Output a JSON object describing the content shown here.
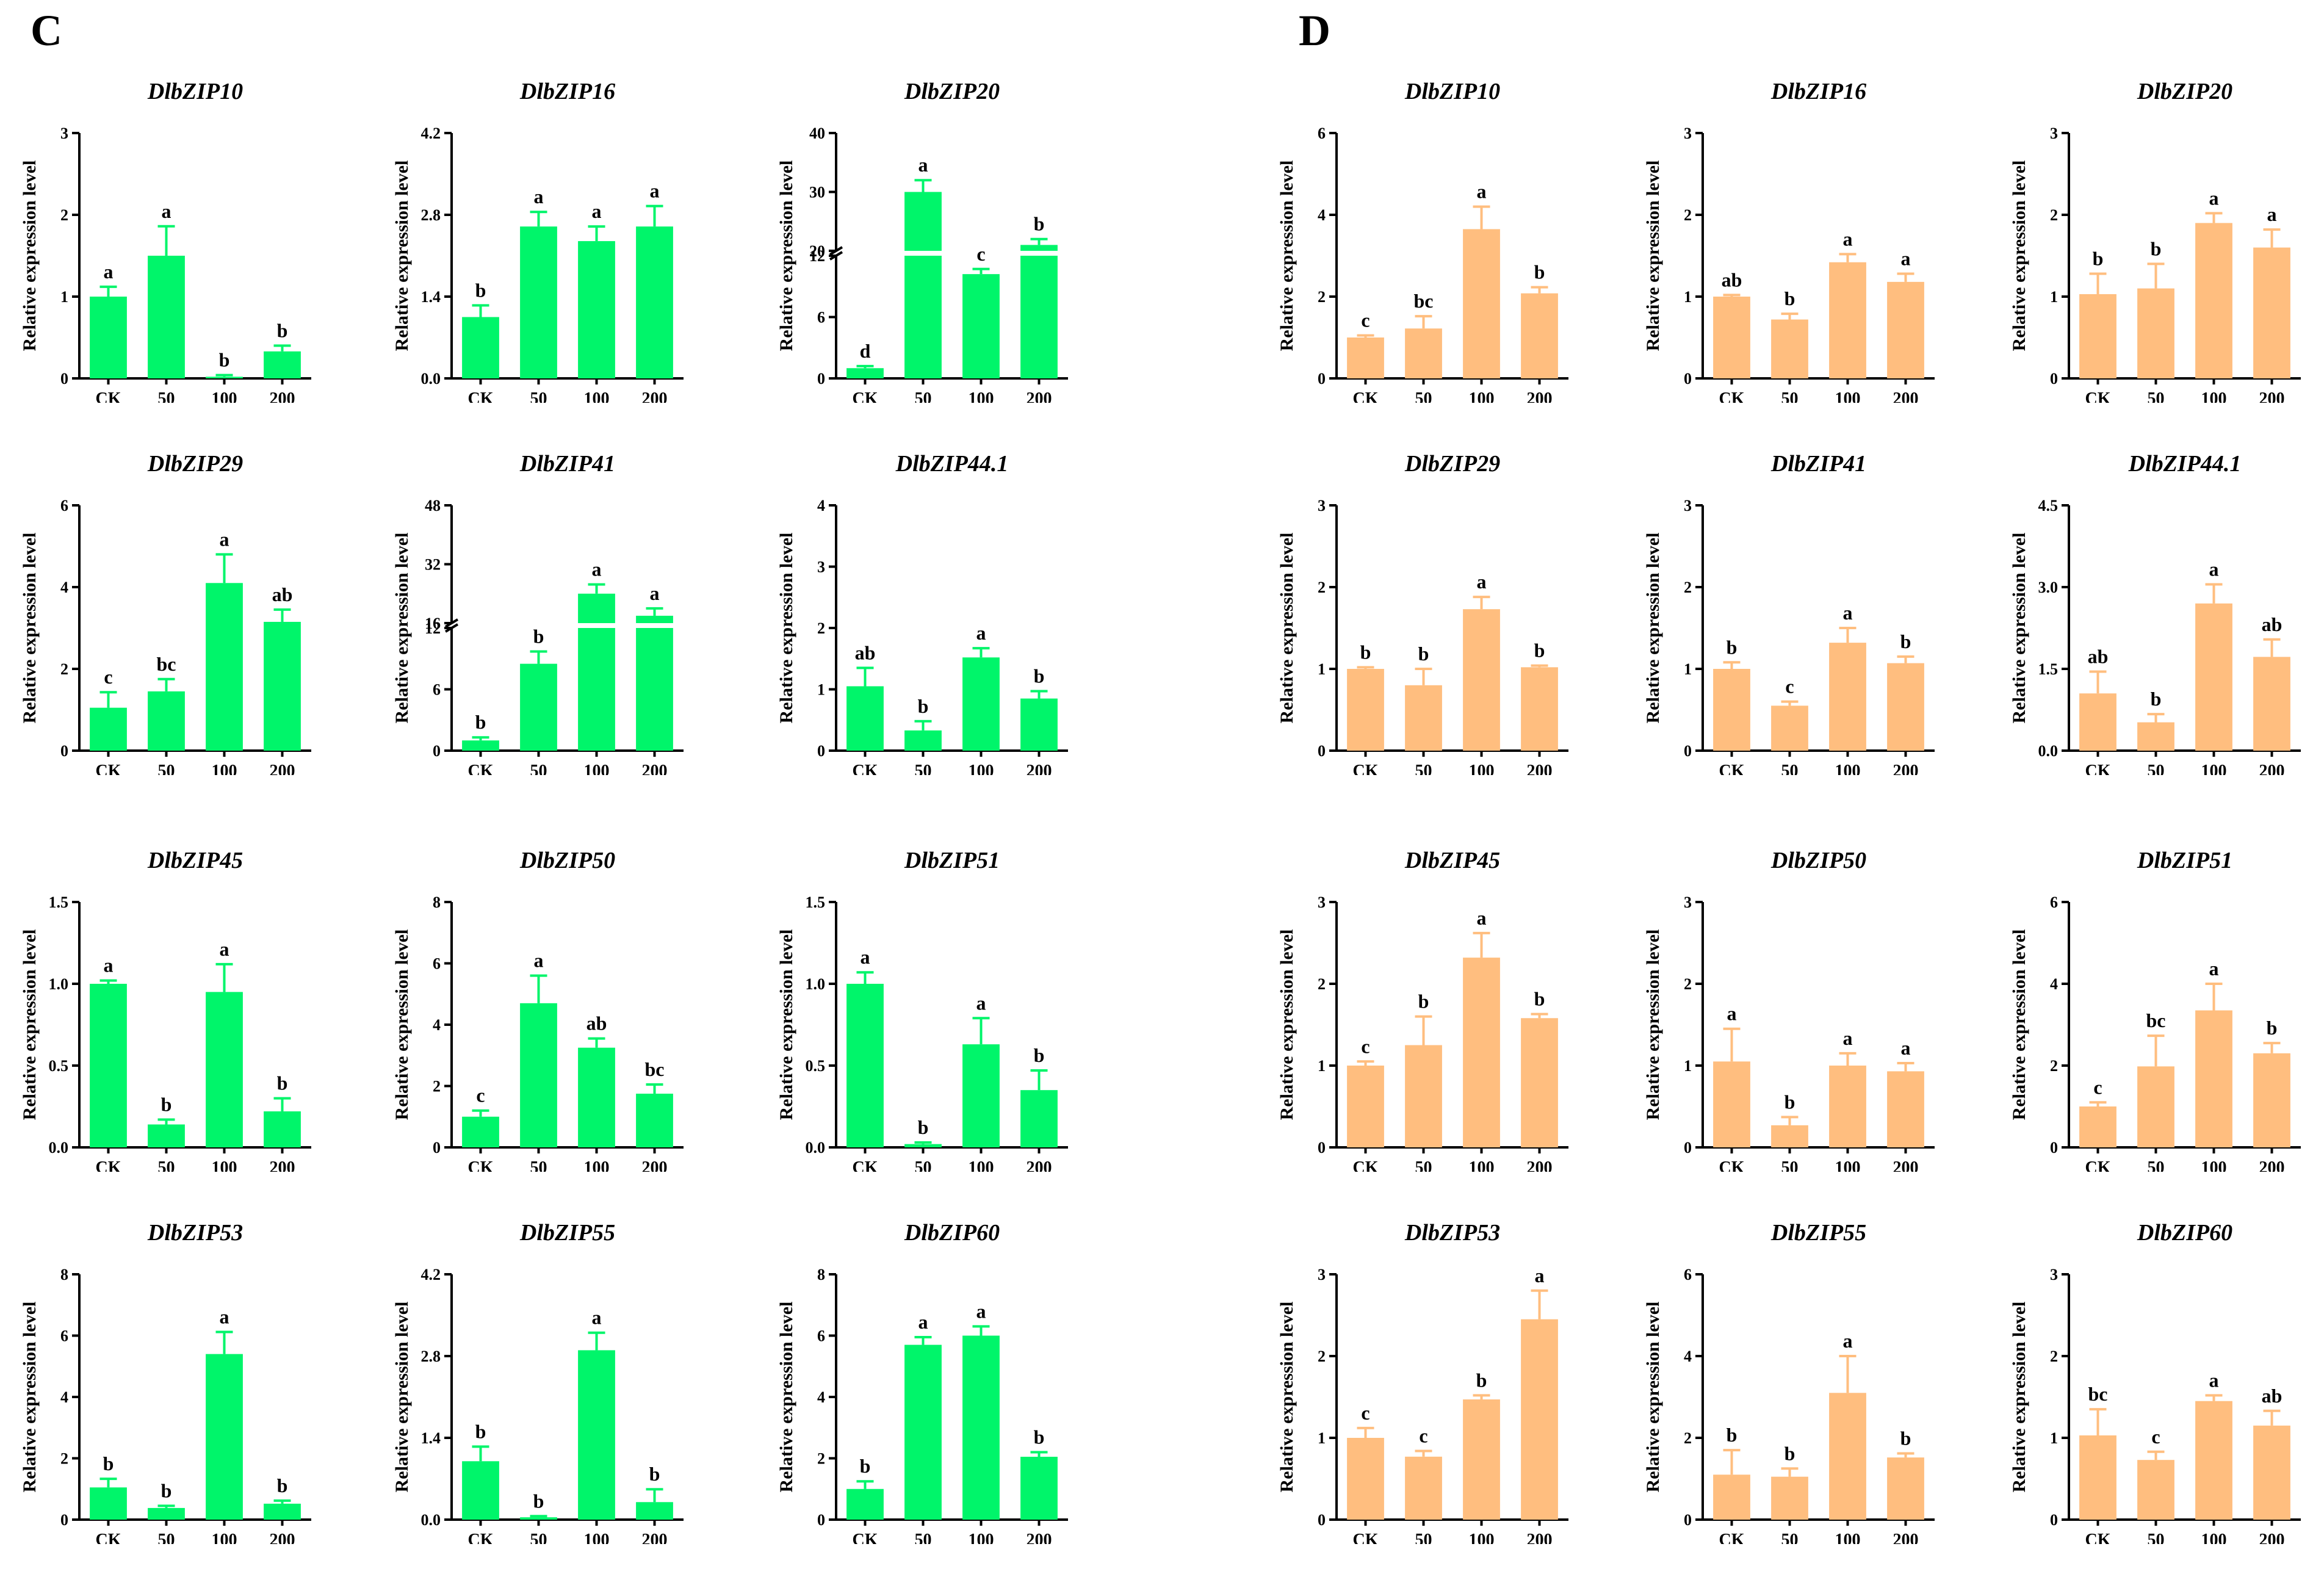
{
  "figure": {
    "panel_labels": [
      "C",
      "D"
    ],
    "ylabel": "Relative expression level",
    "categories": [
      "CK",
      "50",
      "100",
      "200"
    ],
    "colors": {
      "C": "#00F56A",
      "D": "#FFBE7F",
      "axis": "#000000"
    }
  },
  "chart_data": [
    {
      "panel": "C",
      "type": "bar",
      "title": "DlbZIP10",
      "categories": [
        "CK",
        "50",
        "100",
        "200"
      ],
      "values": [
        1.0,
        1.5,
        0.02,
        0.33
      ],
      "errors": [
        0.12,
        0.36,
        0.02,
        0.07
      ],
      "letters": [
        "a",
        "a",
        "b",
        "b"
      ],
      "ylabel": "Relative expression level",
      "ylim": [
        0,
        3
      ],
      "yticks": [
        "0",
        "1",
        "2",
        "3"
      ]
    },
    {
      "panel": "C",
      "type": "bar",
      "title": "DlbZIP16",
      "categories": [
        "CK",
        "50",
        "100",
        "200"
      ],
      "values": [
        1.05,
        2.6,
        2.35,
        2.6
      ],
      "errors": [
        0.2,
        0.25,
        0.25,
        0.35
      ],
      "letters": [
        "b",
        "a",
        "a",
        "a"
      ],
      "ylabel": "Relative expression level",
      "ylim": [
        0,
        4.2
      ],
      "yticks": [
        "0.0",
        "1.4",
        "2.8",
        "4.2"
      ]
    },
    {
      "panel": "C",
      "type": "bar",
      "title": "DlbZIP20",
      "categories": [
        "CK",
        "50",
        "100",
        "200"
      ],
      "values": [
        1.0,
        30.0,
        10.2,
        21.0
      ],
      "errors": [
        0.2,
        2.0,
        0.5,
        1.0
      ],
      "letters": [
        "d",
        "a",
        "c",
        "b"
      ],
      "ylabel": "Relative expression level",
      "ylim": [
        0,
        40
      ],
      "broken_axis": {
        "lower": [
          0,
          12
        ],
        "upper": [
          20,
          40
        ]
      },
      "yticks": [
        "0",
        "6",
        "12",
        "20",
        "30",
        "40"
      ]
    },
    {
      "panel": "C",
      "type": "bar",
      "title": "DlbZIP29",
      "categories": [
        "CK",
        "50",
        "100",
        "200"
      ],
      "values": [
        1.05,
        1.45,
        4.1,
        3.15
      ],
      "errors": [
        0.38,
        0.3,
        0.7,
        0.3
      ],
      "letters": [
        "c",
        "bc",
        "a",
        "ab"
      ],
      "ylabel": "Relative expression level",
      "ylim": [
        0,
        6
      ],
      "yticks": [
        "0",
        "2",
        "4",
        "6"
      ]
    },
    {
      "panel": "C",
      "type": "bar",
      "title": "DlbZIP41",
      "categories": [
        "CK",
        "50",
        "100",
        "200"
      ],
      "values": [
        1.0,
        8.5,
        24.0,
        18.0
      ],
      "errors": [
        0.3,
        1.2,
        2.5,
        2.0
      ],
      "letters": [
        "b",
        "b",
        "a",
        "a"
      ],
      "ylabel": "Relative expression level",
      "ylim": [
        0,
        48
      ],
      "broken_axis": {
        "lower": [
          0,
          12
        ],
        "upper": [
          16,
          48
        ]
      },
      "yticks": [
        "0",
        "6",
        "12",
        "16",
        "32",
        "48"
      ]
    },
    {
      "panel": "C",
      "type": "bar",
      "title": "DlbZIP44.1",
      "categories": [
        "CK",
        "50",
        "100",
        "200"
      ],
      "values": [
        1.05,
        0.33,
        1.52,
        0.85
      ],
      "errors": [
        0.3,
        0.15,
        0.15,
        0.12
      ],
      "letters": [
        "ab",
        "b",
        "a",
        "b"
      ],
      "ylabel": "Relative expression level",
      "ylim": [
        0,
        4
      ],
      "yticks": [
        "0",
        "1",
        "2",
        "3",
        "4"
      ]
    },
    {
      "panel": "C",
      "type": "bar",
      "title": "DlbZIP45",
      "categories": [
        "CK",
        "50",
        "100",
        "200"
      ],
      "values": [
        1.0,
        0.14,
        0.95,
        0.22
      ],
      "errors": [
        0.02,
        0.03,
        0.17,
        0.08
      ],
      "letters": [
        "a",
        "b",
        "a",
        "b"
      ],
      "ylabel": "Relative expression level",
      "ylim": [
        0,
        1.5
      ],
      "yticks": [
        "0.0",
        "0.5",
        "1.0",
        "1.5"
      ]
    },
    {
      "panel": "C",
      "type": "bar",
      "title": "DlbZIP50",
      "categories": [
        "CK",
        "50",
        "100",
        "200"
      ],
      "values": [
        1.0,
        4.7,
        3.25,
        1.75
      ],
      "errors": [
        0.2,
        0.9,
        0.3,
        0.3
      ],
      "letters": [
        "c",
        "a",
        "ab",
        "bc"
      ],
      "ylabel": "Relative expression level",
      "ylim": [
        0,
        8
      ],
      "yticks": [
        "0",
        "2",
        "4",
        "6",
        "8"
      ]
    },
    {
      "panel": "C",
      "type": "bar",
      "title": "DlbZIP51",
      "categories": [
        "CK",
        "50",
        "100",
        "200"
      ],
      "values": [
        1.0,
        0.02,
        0.63,
        0.35
      ],
      "errors": [
        0.07,
        0.01,
        0.16,
        0.12
      ],
      "letters": [
        "a",
        "b",
        "a",
        "b"
      ],
      "ylabel": "Relative expression level",
      "ylim": [
        0,
        1.5
      ],
      "yticks": [
        "0.0",
        "0.5",
        "1.0",
        "1.5"
      ]
    },
    {
      "panel": "C",
      "type": "bar",
      "title": "DlbZIP53",
      "categories": [
        "CK",
        "50",
        "100",
        "200"
      ],
      "values": [
        1.05,
        0.38,
        5.4,
        0.52
      ],
      "errors": [
        0.28,
        0.07,
        0.72,
        0.1
      ],
      "letters": [
        "b",
        "b",
        "a",
        "b"
      ],
      "ylabel": "Relative expression level",
      "ylim": [
        0,
        8
      ],
      "yticks": [
        "0",
        "2",
        "4",
        "6",
        "8"
      ]
    },
    {
      "panel": "C",
      "type": "bar",
      "title": "DlbZIP55",
      "categories": [
        "CK",
        "50",
        "100",
        "200"
      ],
      "values": [
        1.0,
        0.04,
        2.9,
        0.3
      ],
      "errors": [
        0.25,
        0.02,
        0.3,
        0.22
      ],
      "letters": [
        "b",
        "b",
        "a",
        "b"
      ],
      "ylabel": "Relative expression level",
      "ylim": [
        0,
        4.2
      ],
      "yticks": [
        "0.0",
        "1.4",
        "2.8",
        "4.2"
      ]
    },
    {
      "panel": "C",
      "type": "bar",
      "title": "DlbZIP60",
      "categories": [
        "CK",
        "50",
        "100",
        "200"
      ],
      "values": [
        1.0,
        5.7,
        6.0,
        2.05
      ],
      "errors": [
        0.25,
        0.25,
        0.3,
        0.15
      ],
      "letters": [
        "b",
        "a",
        "a",
        "b"
      ],
      "ylabel": "Relative expression level",
      "ylim": [
        0,
        8
      ],
      "yticks": [
        "0",
        "2",
        "4",
        "6",
        "8"
      ]
    },
    {
      "panel": "D",
      "type": "bar",
      "title": "DlbZIP10",
      "categories": [
        "CK",
        "50",
        "100",
        "200"
      ],
      "values": [
        1.0,
        1.22,
        3.65,
        2.08
      ],
      "errors": [
        0.05,
        0.3,
        0.55,
        0.15
      ],
      "letters": [
        "c",
        "bc",
        "a",
        "b"
      ],
      "ylabel": "Relative expression level",
      "ylim": [
        0,
        6
      ],
      "yticks": [
        "0",
        "2",
        "4",
        "6"
      ]
    },
    {
      "panel": "D",
      "type": "bar",
      "title": "DlbZIP16",
      "categories": [
        "CK",
        "50",
        "100",
        "200"
      ],
      "values": [
        1.0,
        0.72,
        1.42,
        1.18
      ],
      "errors": [
        0.02,
        0.07,
        0.1,
        0.1
      ],
      "letters": [
        "ab",
        "b",
        "a",
        "a"
      ],
      "ylabel": "Relative expression level",
      "ylim": [
        0,
        3
      ],
      "yticks": [
        "0",
        "1",
        "2",
        "3"
      ]
    },
    {
      "panel": "D",
      "type": "bar",
      "title": "DlbZIP20",
      "categories": [
        "CK",
        "50",
        "100",
        "200"
      ],
      "values": [
        1.03,
        1.1,
        1.9,
        1.6
      ],
      "errors": [
        0.25,
        0.3,
        0.12,
        0.22
      ],
      "letters": [
        "b",
        "b",
        "a",
        "a"
      ],
      "ylabel": "Relative expression level",
      "ylim": [
        0,
        3
      ],
      "yticks": [
        "0",
        "1",
        "2",
        "3"
      ]
    },
    {
      "panel": "D",
      "type": "bar",
      "title": "DlbZIP29",
      "categories": [
        "CK",
        "50",
        "100",
        "200"
      ],
      "values": [
        1.0,
        0.8,
        1.73,
        1.02
      ],
      "errors": [
        0.02,
        0.2,
        0.15,
        0.02
      ],
      "letters": [
        "b",
        "b",
        "a",
        "b"
      ],
      "ylabel": "Relative expression level",
      "ylim": [
        0,
        3
      ],
      "yticks": [
        "0",
        "1",
        "2",
        "3"
      ]
    },
    {
      "panel": "D",
      "type": "bar",
      "title": "DlbZIP41",
      "categories": [
        "CK",
        "50",
        "100",
        "200"
      ],
      "values": [
        1.0,
        0.55,
        1.32,
        1.07
      ],
      "errors": [
        0.08,
        0.05,
        0.18,
        0.08
      ],
      "letters": [
        "b",
        "c",
        "a",
        "b"
      ],
      "ylabel": "Relative expression level",
      "ylim": [
        0,
        3
      ],
      "yticks": [
        "0",
        "1",
        "2",
        "3"
      ]
    },
    {
      "panel": "D",
      "type": "bar",
      "title": "DlbZIP44.1",
      "categories": [
        "CK",
        "50",
        "100",
        "200"
      ],
      "values": [
        1.05,
        0.52,
        2.7,
        1.72
      ],
      "errors": [
        0.4,
        0.15,
        0.35,
        0.32
      ],
      "letters": [
        "ab",
        "b",
        "a",
        "ab"
      ],
      "ylabel": "Relative expression level",
      "ylim": [
        0,
        4.5
      ],
      "yticks": [
        "0.0",
        "1.5",
        "3.0",
        "4.5"
      ]
    },
    {
      "panel": "D",
      "type": "bar",
      "title": "DlbZIP45",
      "categories": [
        "CK",
        "50",
        "100",
        "200"
      ],
      "values": [
        1.0,
        1.25,
        2.32,
        1.58
      ],
      "errors": [
        0.05,
        0.35,
        0.3,
        0.05
      ],
      "letters": [
        "c",
        "b",
        "a",
        "b"
      ],
      "ylabel": "Relative expression level",
      "ylim": [
        0,
        3
      ],
      "yticks": [
        "0",
        "1",
        "2",
        "3"
      ]
    },
    {
      "panel": "D",
      "type": "bar",
      "title": "DlbZIP50",
      "categories": [
        "CK",
        "50",
        "100",
        "200"
      ],
      "values": [
        1.05,
        0.27,
        1.0,
        0.93
      ],
      "errors": [
        0.4,
        0.1,
        0.15,
        0.1
      ],
      "letters": [
        "a",
        "b",
        "a",
        "a"
      ],
      "ylabel": "Relative expression level",
      "ylim": [
        0,
        3
      ],
      "yticks": [
        "0",
        "1",
        "2",
        "3"
      ]
    },
    {
      "panel": "D",
      "type": "bar",
      "title": "DlbZIP51",
      "categories": [
        "CK",
        "50",
        "100",
        "200"
      ],
      "values": [
        1.0,
        1.98,
        3.35,
        2.3
      ],
      "errors": [
        0.1,
        0.75,
        0.65,
        0.25
      ],
      "letters": [
        "c",
        "bc",
        "a",
        "b"
      ],
      "ylabel": "Relative expression level",
      "ylim": [
        0,
        6
      ],
      "yticks": [
        "0",
        "2",
        "4",
        "6"
      ]
    },
    {
      "panel": "D",
      "type": "bar",
      "title": "DlbZIP53",
      "categories": [
        "CK",
        "50",
        "100",
        "200"
      ],
      "values": [
        1.0,
        0.77,
        1.47,
        2.45
      ],
      "errors": [
        0.12,
        0.07,
        0.05,
        0.35
      ],
      "letters": [
        "c",
        "c",
        "b",
        "a"
      ],
      "ylabel": "Relative expression level",
      "ylim": [
        0,
        3
      ],
      "yticks": [
        "0",
        "1",
        "2",
        "3"
      ]
    },
    {
      "panel": "D",
      "type": "bar",
      "title": "DlbZIP55",
      "categories": [
        "CK",
        "50",
        "100",
        "200"
      ],
      "values": [
        1.1,
        1.05,
        3.1,
        1.52
      ],
      "errors": [
        0.6,
        0.2,
        0.9,
        0.1
      ],
      "letters": [
        "b",
        "b",
        "a",
        "b"
      ],
      "ylabel": "Relative expression level",
      "ylim": [
        0,
        6
      ],
      "yticks": [
        "0",
        "2",
        "4",
        "6"
      ]
    },
    {
      "panel": "D",
      "type": "bar",
      "title": "DlbZIP60",
      "categories": [
        "CK",
        "50",
        "100",
        "200"
      ],
      "values": [
        1.03,
        0.73,
        1.45,
        1.15
      ],
      "errors": [
        0.32,
        0.1,
        0.07,
        0.18
      ],
      "letters": [
        "bc",
        "c",
        "a",
        "ab"
      ],
      "ylabel": "Relative expression level",
      "ylim": [
        0,
        3
      ],
      "yticks": [
        "0",
        "1",
        "2",
        "3"
      ]
    }
  ]
}
